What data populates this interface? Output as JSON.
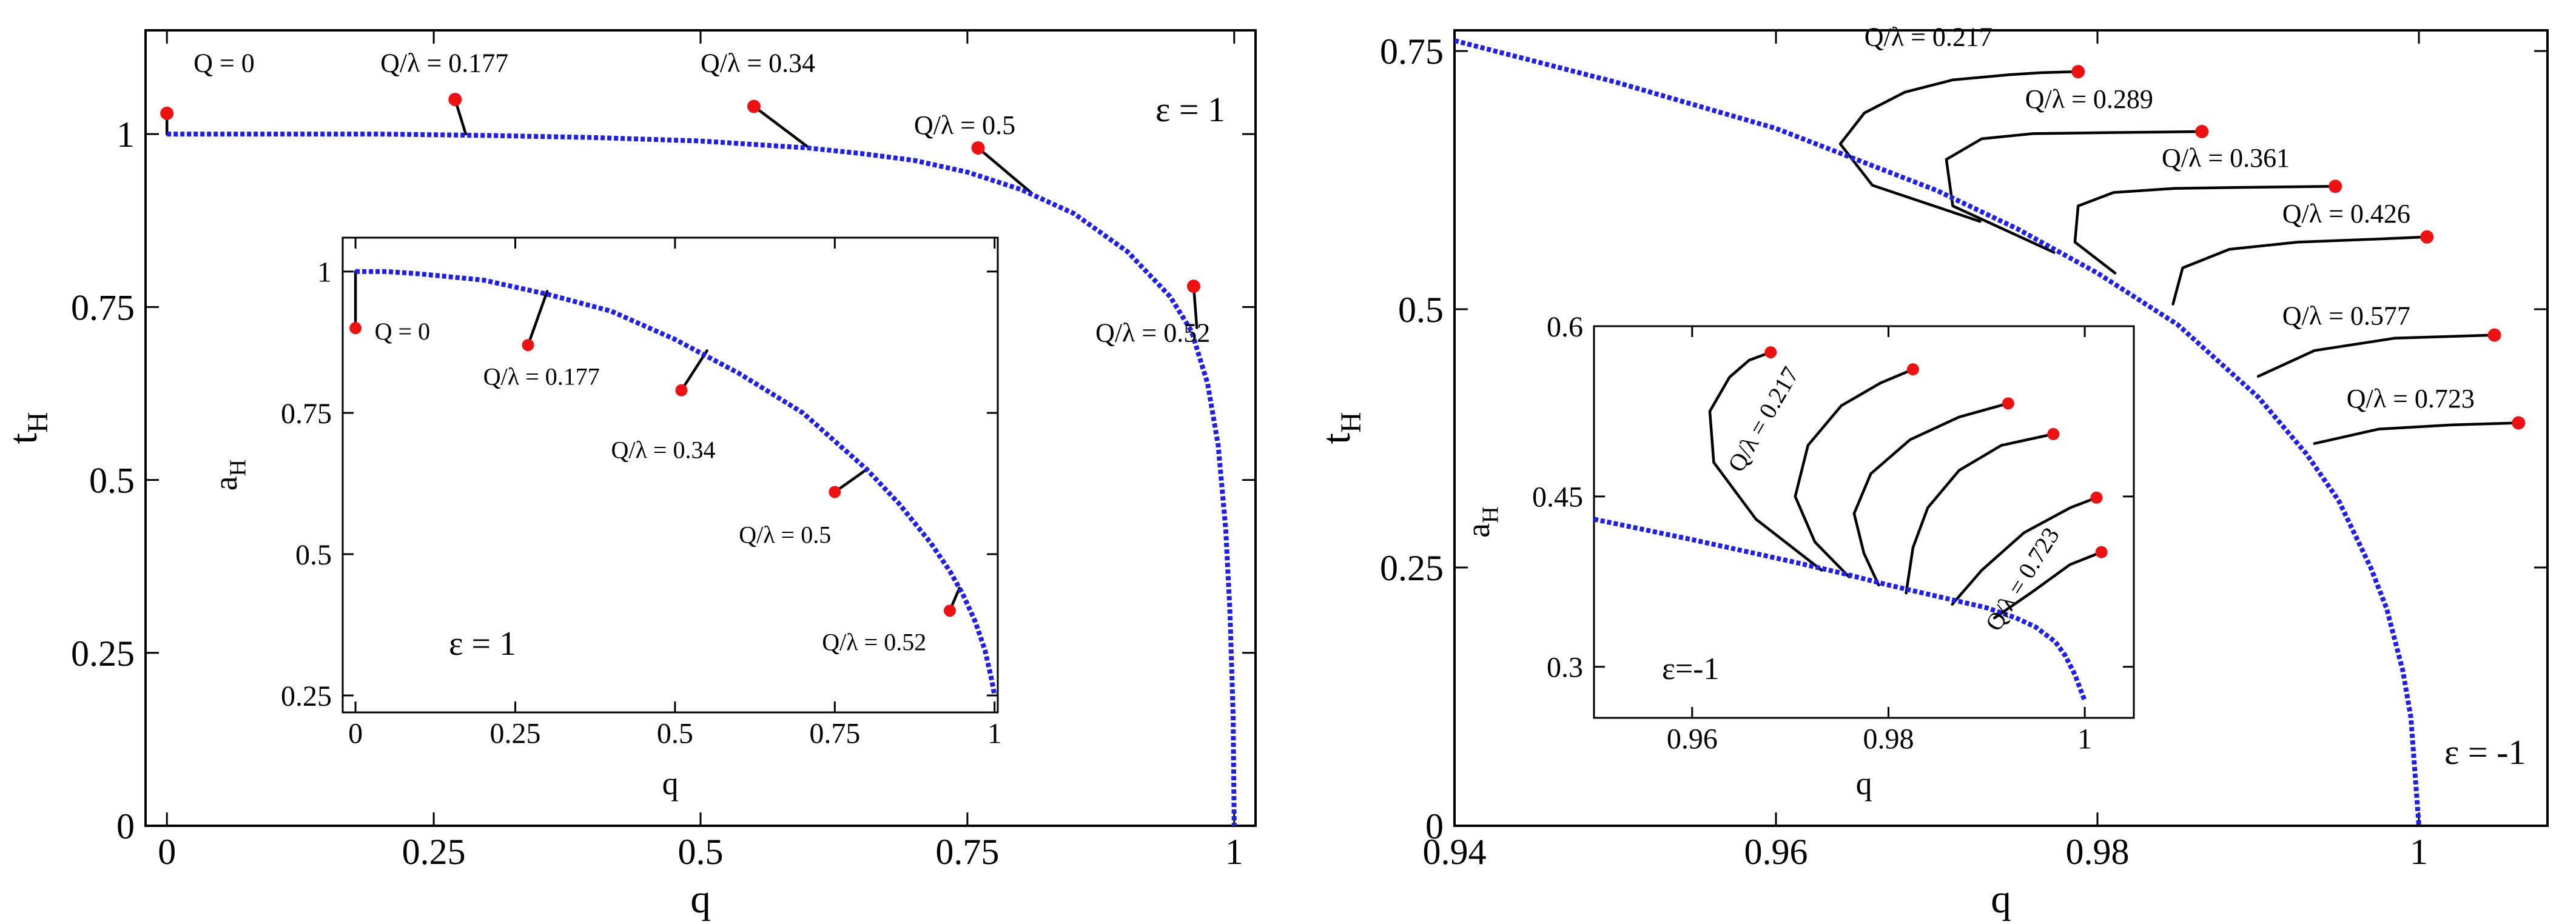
{
  "colors": {
    "curve": "#1f1fe6",
    "branch": "#000000",
    "marker": "#ee1111",
    "axis": "#000000",
    "background": "#ffffff"
  },
  "chart_data": [
    {
      "id": "left-main",
      "type": "line",
      "xlabel": "q",
      "ylabel": "t",
      "ylabel_sub": "H",
      "xlim": [
        -0.02,
        1.02
      ],
      "ylim": [
        0,
        1.15
      ],
      "xticks": [
        0,
        0.25,
        0.5,
        0.75,
        1
      ],
      "xtick_labels": [
        "0",
        "0.25",
        "0.5",
        "0.75",
        "1"
      ],
      "yticks": [
        0,
        0.25,
        0.5,
        0.75,
        1
      ],
      "ytick_labels": [
        "0",
        "0.25",
        "0.5",
        "0.75",
        "1"
      ],
      "annotation": "ε = 1",
      "curve": {
        "style": "dotted",
        "x": [
          0,
          0.1,
          0.2,
          0.3,
          0.4,
          0.5,
          0.6,
          0.65,
          0.7,
          0.75,
          0.8,
          0.85,
          0.9,
          0.94,
          0.96,
          0.975,
          0.985,
          0.992,
          0.996,
          0.999,
          1.0
        ],
        "y": [
          1.0,
          1.0,
          1.0,
          0.998,
          0.995,
          0.99,
          0.98,
          0.972,
          0.962,
          0.945,
          0.92,
          0.885,
          0.83,
          0.765,
          0.715,
          0.64,
          0.55,
          0.43,
          0.31,
          0.16,
          0.0
        ]
      },
      "branches": [
        {
          "label": "Q = 0",
          "label_x": 0.025,
          "label_y": 1.09,
          "x": [
            0,
            0
          ],
          "y": [
            1.0,
            1.03
          ],
          "marker": [
            0,
            1.03
          ]
        },
        {
          "label": "Q/λ = 0.177",
          "label_x": 0.2,
          "label_y": 1.09,
          "x": [
            0.28,
            0.27
          ],
          "y": [
            1.0,
            1.05
          ],
          "marker": [
            0.27,
            1.05
          ]
        },
        {
          "label": "Q/λ = 0.34",
          "label_x": 0.5,
          "label_y": 1.09,
          "x": [
            0.6,
            0.55
          ],
          "y": [
            0.982,
            1.04
          ],
          "marker": [
            0.55,
            1.04
          ]
        },
        {
          "label": "Q/λ = 0.5",
          "label_x": 0.7,
          "label_y": 1.0,
          "x": [
            0.81,
            0.76
          ],
          "y": [
            0.915,
            0.98
          ],
          "marker": [
            0.76,
            0.98
          ]
        },
        {
          "label": "Q/λ = 0.52",
          "label_x": 0.87,
          "label_y": 0.7,
          "x": [
            0.965,
            0.962
          ],
          "y": [
            0.72,
            0.78
          ],
          "marker": [
            0.962,
            0.78
          ]
        }
      ]
    },
    {
      "id": "left-inset",
      "type": "line",
      "xlabel": "q",
      "ylabel": "a",
      "ylabel_sub": "H",
      "xlim": [
        -0.02,
        1.005
      ],
      "ylim": [
        0.22,
        1.06
      ],
      "xticks": [
        0,
        0.25,
        0.5,
        0.75,
        1
      ],
      "xtick_labels": [
        "0",
        "0.25",
        "0.5",
        "0.75",
        "1"
      ],
      "yticks": [
        0.25,
        0.5,
        0.75,
        1
      ],
      "ytick_labels": [
        "0.25",
        "0.5",
        "0.75",
        "1"
      ],
      "annotation": "ε = 1",
      "curve": {
        "style": "dotted",
        "x": [
          0,
          0.05,
          0.1,
          0.2,
          0.3,
          0.4,
          0.5,
          0.6,
          0.7,
          0.8,
          0.85,
          0.9,
          0.93,
          0.95,
          0.97,
          0.985,
          0.995,
          1.0
        ],
        "y": [
          1.0,
          1.0,
          0.996,
          0.985,
          0.96,
          0.93,
          0.88,
          0.82,
          0.75,
          0.65,
          0.59,
          0.52,
          0.47,
          0.43,
          0.38,
          0.33,
          0.28,
          0.25
        ]
      },
      "branches": [
        {
          "label": "Q = 0",
          "label_x": 0.03,
          "label_y": 0.88,
          "x": [
            0,
            0
          ],
          "y": [
            1.0,
            0.9
          ],
          "marker": [
            0,
            0.9
          ]
        },
        {
          "label": "Q/λ = 0.177",
          "label_x": 0.2,
          "label_y": 0.8,
          "x": [
            0.3,
            0.27
          ],
          "y": [
            0.965,
            0.87
          ],
          "marker": [
            0.27,
            0.87
          ]
        },
        {
          "label": "Q/λ = 0.34",
          "label_x": 0.4,
          "label_y": 0.67,
          "x": [
            0.55,
            0.51
          ],
          "y": [
            0.86,
            0.79
          ],
          "marker": [
            0.51,
            0.79
          ]
        },
        {
          "label": "Q/λ = 0.5",
          "label_x": 0.6,
          "label_y": 0.52,
          "x": [
            0.8,
            0.75
          ],
          "y": [
            0.65,
            0.61
          ],
          "marker": [
            0.75,
            0.61
          ]
        },
        {
          "label": "Q/λ = 0.52",
          "label_x": 0.73,
          "label_y": 0.33,
          "x": [
            0.945,
            0.93
          ],
          "y": [
            0.44,
            0.4
          ],
          "marker": [
            0.93,
            0.4
          ]
        }
      ]
    },
    {
      "id": "right-main",
      "type": "line",
      "xlabel": "q",
      "ylabel": "t",
      "ylabel_sub": "H",
      "xlim": [
        0.94,
        1.008
      ],
      "ylim": [
        0,
        0.77
      ],
      "xticks": [
        0.94,
        0.96,
        0.98,
        1
      ],
      "xtick_labels": [
        "0.94",
        "0.96",
        "0.98",
        "1"
      ],
      "yticks": [
        0,
        0.25,
        0.5,
        0.75
      ],
      "ytick_labels": [
        "0",
        "0.25",
        "0.5",
        "0.75"
      ],
      "annotation": "ε = -1",
      "curve": {
        "style": "dotted",
        "x": [
          0.94,
          0.95,
          0.96,
          0.97,
          0.975,
          0.98,
          0.985,
          0.99,
          0.993,
          0.995,
          0.997,
          0.998,
          0.999,
          0.9995,
          1.0
        ],
        "y": [
          0.76,
          0.72,
          0.675,
          0.615,
          0.578,
          0.535,
          0.485,
          0.415,
          0.36,
          0.315,
          0.25,
          0.21,
          0.15,
          0.105,
          0.0
        ]
      },
      "branches": [
        {
          "label": "Q/λ = 0.217",
          "label_x": 0.9655,
          "label_y": 0.755,
          "x": [
            0.9727,
            0.966,
            0.964,
            0.9655,
            0.968,
            0.971,
            0.9745,
            0.9765,
            0.9788
          ],
          "y": [
            0.585,
            0.62,
            0.66,
            0.69,
            0.71,
            0.722,
            0.727,
            0.729,
            0.73
          ],
          "marker": [
            0.9788,
            0.73
          ]
        },
        {
          "label": "Q/λ = 0.289",
          "label_x": 0.9755,
          "label_y": 0.695,
          "x": [
            0.9773,
            0.971,
            0.9706,
            0.9728,
            0.976,
            0.981,
            0.9865
          ],
          "y": [
            0.555,
            0.6,
            0.645,
            0.665,
            0.67,
            0.671,
            0.672
          ],
          "marker": [
            0.9865,
            0.672
          ]
        },
        {
          "label": "Q/λ = 0.361",
          "label_x": 0.984,
          "label_y": 0.638,
          "x": [
            0.9811,
            0.9786,
            0.9788,
            0.981,
            0.9848,
            0.9893,
            0.9948
          ],
          "y": [
            0.535,
            0.565,
            0.6,
            0.613,
            0.617,
            0.618,
            0.619
          ],
          "marker": [
            0.9948,
            0.619
          ]
        },
        {
          "label": "Q/λ = 0.426",
          "label_x": 0.9915,
          "label_y": 0.584,
          "x": [
            0.9847,
            0.9853,
            0.9882,
            0.9925,
            0.9975,
            1.0005
          ],
          "y": [
            0.505,
            0.54,
            0.558,
            0.565,
            0.568,
            0.57
          ],
          "marker": [
            1.0005,
            0.57
          ]
        },
        {
          "label": "Q/λ = 0.577",
          "label_x": 0.9915,
          "label_y": 0.485,
          "x": [
            0.99,
            0.9935,
            0.9985,
            1.0047
          ],
          "y": [
            0.435,
            0.46,
            0.472,
            0.475
          ],
          "marker": [
            1.0047,
            0.475
          ]
        },
        {
          "label": "Q/λ = 0.723",
          "label_x": 0.9955,
          "label_y": 0.405,
          "x": [
            0.9935,
            0.9975,
            1.002,
            1.0062
          ],
          "y": [
            0.37,
            0.384,
            0.388,
            0.39
          ],
          "marker": [
            1.0062,
            0.39
          ]
        }
      ]
    },
    {
      "id": "right-inset",
      "type": "line",
      "xlabel": "q",
      "ylabel": "a",
      "ylabel_sub": "H",
      "xlim": [
        0.95,
        1.005
      ],
      "ylim": [
        0.255,
        0.6
      ],
      "xticks": [
        0.96,
        0.98,
        1
      ],
      "xtick_labels": [
        "0.96",
        "0.98",
        "1"
      ],
      "yticks": [
        0.3,
        0.45,
        0.6
      ],
      "ytick_labels": [
        "0.3",
        "0.45",
        "0.6"
      ],
      "annotation": "ε=-1",
      "curve": {
        "style": "dotted",
        "x": [
          0.95,
          0.96,
          0.97,
          0.975,
          0.98,
          0.985,
          0.99,
          0.993,
          0.995,
          0.997,
          0.998,
          0.999,
          1.0
        ],
        "y": [
          0.43,
          0.412,
          0.393,
          0.383,
          0.372,
          0.362,
          0.352,
          0.343,
          0.335,
          0.322,
          0.31,
          0.293,
          0.27
        ]
      },
      "branches": [
        {
          "label": "Q/λ = 0.217",
          "label_x": 0.965,
          "label_y": 0.47,
          "label_angle": -60,
          "x": [
            0.9732,
            0.9665,
            0.9622,
            0.9618,
            0.9638,
            0.9658,
            0.968
          ],
          "y": [
            0.385,
            0.43,
            0.48,
            0.525,
            0.555,
            0.57,
            0.577
          ],
          "marker": [
            0.968,
            0.577
          ]
        },
        {
          "label": "",
          "x": [
            0.976,
            0.9725,
            0.9705,
            0.9718,
            0.9752,
            0.9792,
            0.9825
          ],
          "y": [
            0.379,
            0.41,
            0.45,
            0.495,
            0.53,
            0.55,
            0.562
          ],
          "marker": [
            0.9825,
            0.562
          ]
        },
        {
          "label": "",
          "x": [
            0.979,
            0.9775,
            0.9765,
            0.9782,
            0.9822,
            0.9872,
            0.9922
          ],
          "y": [
            0.372,
            0.4,
            0.435,
            0.47,
            0.5,
            0.52,
            0.532
          ],
          "marker": [
            0.9922,
            0.532
          ]
        },
        {
          "label": "",
          "x": [
            0.9818,
            0.9825,
            0.984,
            0.9872,
            0.9915,
            0.9968
          ],
          "y": [
            0.365,
            0.405,
            0.44,
            0.473,
            0.495,
            0.505
          ],
          "marker": [
            0.9968,
            0.505
          ]
        },
        {
          "label": "",
          "x": [
            0.9865,
            0.9895,
            0.9938,
            0.9985,
            1.0012
          ],
          "y": [
            0.355,
            0.385,
            0.418,
            0.44,
            0.449
          ],
          "marker": [
            1.0012,
            0.449
          ]
        },
        {
          "label": "Q/λ = 0.723",
          "label_x": 0.9912,
          "label_y": 0.33,
          "label_angle": -58,
          "x": [
            0.9908,
            0.9945,
            0.9985,
            1.0017
          ],
          "y": [
            0.343,
            0.365,
            0.39,
            0.401
          ],
          "marker": [
            1.0017,
            0.401
          ]
        }
      ]
    }
  ]
}
